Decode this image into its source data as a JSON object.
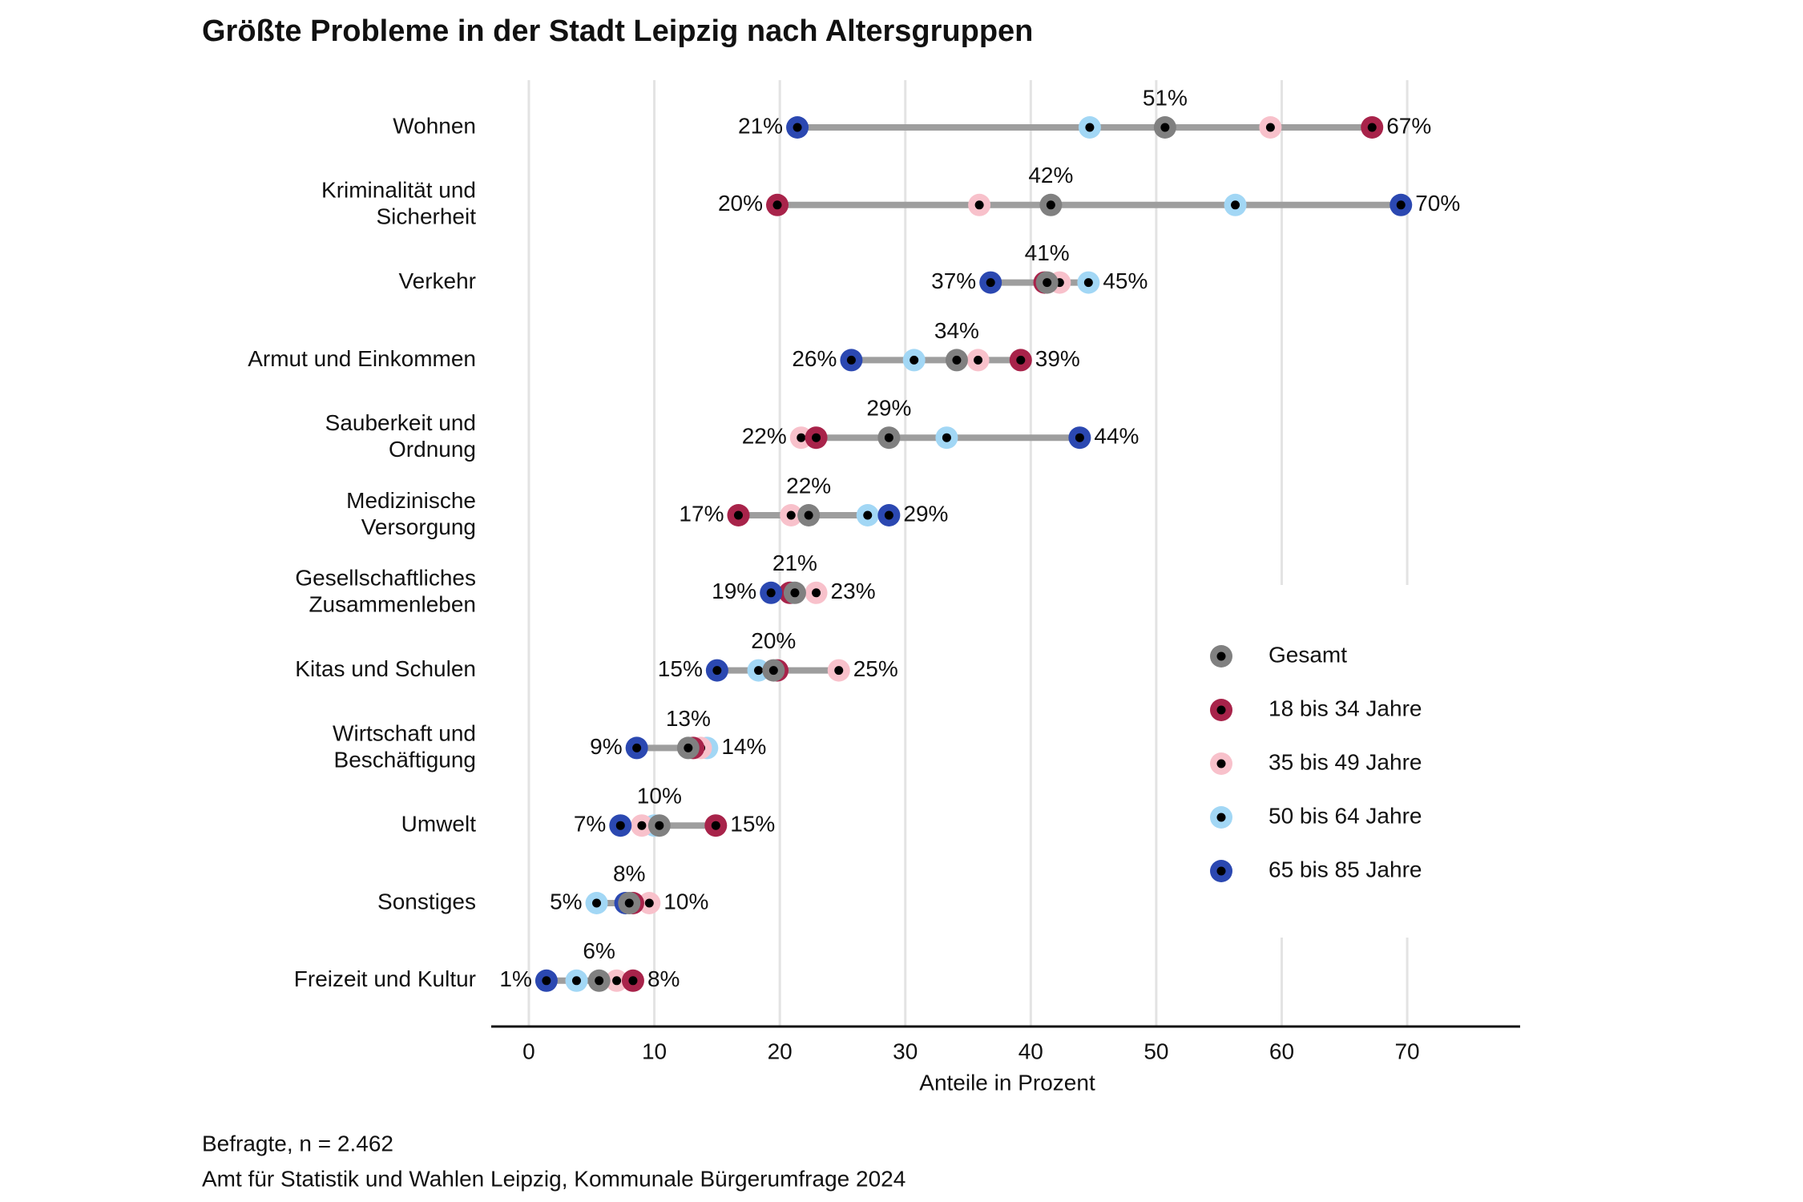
{
  "chart_data": {
    "type": "dotrange",
    "title": "Größte Probleme in der Stadt Leipzig nach Altersgruppen",
    "xlabel": "Anteile in Prozent",
    "notes": [
      "Befragte, n = 2.462",
      "Amt für Statistik und Wahlen Leipzig, Kommunale Bürgerumfrage 2024"
    ],
    "categories": [
      [
        "Wohnen"
      ],
      [
        "Kriminalität und",
        "Sicherheit"
      ],
      [
        "Verkehr"
      ],
      [
        "Armut und Einkommen"
      ],
      [
        "Sauberkeit und",
        "Ordnung"
      ],
      [
        "Medizinische",
        "Versorgung"
      ],
      [
        "Gesellschaftliches",
        "Zusammenleben"
      ],
      [
        "Kitas und Schulen"
      ],
      [
        "Wirtschaft und",
        "Beschäftigung"
      ],
      [
        "Umwelt"
      ],
      [
        "Sonstiges"
      ],
      [
        "Freizeit und Kultur"
      ]
    ],
    "series": [
      {
        "name": "Gesamt",
        "color": "#808080",
        "values": [
          50.7,
          41.6,
          41.3,
          34.1,
          28.7,
          22.3,
          21.2,
          19.5,
          12.7,
          10.4,
          8.0,
          5.6
        ],
        "value_labels": [
          "51%",
          "42%",
          "41%",
          "34%",
          "29%",
          "22%",
          "21%",
          "20%",
          "13%",
          "10%",
          "8%",
          "6%"
        ]
      },
      {
        "name": "18 bis 34 Jahre",
        "color": "#a8234a",
        "values": [
          67.2,
          19.8,
          41.1,
          39.2,
          22.9,
          16.7,
          20.8,
          19.8,
          13.1,
          14.9,
          8.3,
          8.3
        ],
        "value_labels": [
          "67%",
          "20%",
          null,
          "39%",
          null,
          "17%",
          null,
          null,
          null,
          "15%",
          null,
          "8%"
        ]
      },
      {
        "name": "35 bis 49 Jahre",
        "color": "#f8c1cb",
        "values": [
          59.1,
          35.9,
          42.3,
          35.8,
          21.7,
          20.9,
          22.9,
          24.7,
          13.7,
          9.0,
          9.6,
          7.0
        ],
        "value_labels": [
          null,
          null,
          null,
          null,
          "22%",
          null,
          "23%",
          "25%",
          null,
          null,
          "10%",
          null
        ]
      },
      {
        "name": "50 bis 64 Jahre",
        "color": "#a2d7f5",
        "values": [
          44.7,
          56.3,
          44.6,
          30.7,
          33.3,
          27.0,
          21.0,
          18.3,
          14.2,
          10.0,
          5.4,
          3.8
        ],
        "value_labels": [
          null,
          null,
          "45%",
          null,
          null,
          null,
          null,
          null,
          "14%",
          null,
          "5%",
          null
        ]
      },
      {
        "name": "65 bis 85 Jahre",
        "color": "#2b48b1",
        "values": [
          21.4,
          69.5,
          36.8,
          25.7,
          43.9,
          28.7,
          19.3,
          15.0,
          8.6,
          7.3,
          7.7,
          1.4
        ],
        "value_labels": [
          "21%",
          "70%",
          "37%",
          "26%",
          "44%",
          "29%",
          "19%",
          "15%",
          "9%",
          "7%",
          null,
          "1%"
        ]
      }
    ],
    "xlim": [
      -3,
      79
    ],
    "xticks": [
      0,
      10,
      20,
      30,
      40,
      50,
      60,
      70
    ],
    "grid": true,
    "legend": "right"
  }
}
